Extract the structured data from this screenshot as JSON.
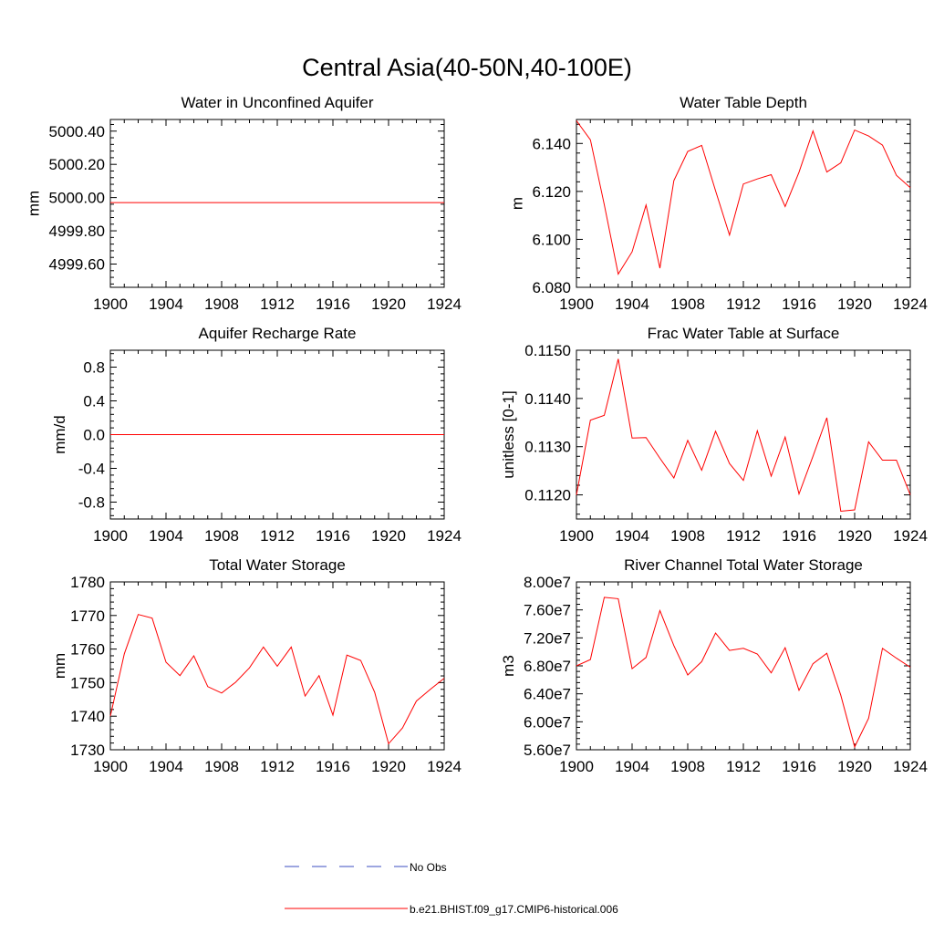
{
  "figure": {
    "title": "Central Asia(40-50N,40-100E)",
    "legend": {
      "entries": [
        {
          "label": "No Obs",
          "color": "#3b4cc0",
          "style": "dashed"
        },
        {
          "label": "b.e21.BHIST.f09_g17.CMIP6-historical.006",
          "color": "#ff0000",
          "style": "solid"
        }
      ]
    }
  },
  "chart_data": [
    {
      "type": "line",
      "title": "Water in Unconfined Aquifer",
      "ylabel": "mm",
      "xlim": [
        1900,
        1924
      ],
      "ylim": [
        4999.46,
        5000.47
      ],
      "xticks": [
        1900,
        1904,
        1908,
        1912,
        1916,
        1920,
        1924
      ],
      "xtick_labels": [
        "1900",
        "1904",
        "1908",
        "1912",
        "1916",
        "1920",
        "1924"
      ],
      "yticks": [
        4999.6,
        4999.8,
        5000.0,
        5000.2,
        5000.4
      ],
      "ytick_labels": [
        "4999.60",
        "4999.80",
        "5000.00",
        "5000.20",
        "5000.40"
      ],
      "series": [
        {
          "name": "b.e21.BHIST.f09_g17.CMIP6-historical.006",
          "color": "#ff0000",
          "x": [
            1900,
            1924
          ],
          "values": [
            4999.97,
            4999.97
          ]
        }
      ]
    },
    {
      "type": "line",
      "title": "Water Table Depth",
      "ylabel": "m",
      "xlim": [
        1900,
        1924
      ],
      "ylim": [
        6.08,
        6.15
      ],
      "xticks": [
        1900,
        1904,
        1908,
        1912,
        1916,
        1920,
        1924
      ],
      "xtick_labels": [
        "1900",
        "1904",
        "1908",
        "1912",
        "1916",
        "1920",
        "1924"
      ],
      "yticks": [
        6.08,
        6.1,
        6.12,
        6.14
      ],
      "ytick_labels": [
        "6.080",
        "6.100",
        "6.120",
        "6.140"
      ],
      "series": [
        {
          "name": "b.e21.BHIST.f09_g17.CMIP6-historical.006",
          "color": "#ff0000",
          "x": [
            1900,
            1901,
            1902,
            1903,
            1904,
            1905,
            1906,
            1907,
            1908,
            1909,
            1910,
            1911,
            1912,
            1913,
            1914,
            1915,
            1916,
            1917,
            1918,
            1919,
            1920,
            1921,
            1922,
            1923,
            1924
          ],
          "values": [
            6.1495,
            6.1415,
            6.1145,
            6.0855,
            6.0948,
            6.1143,
            6.088,
            6.1245,
            6.1367,
            6.1392,
            6.1203,
            6.1018,
            6.1231,
            6.1252,
            6.127,
            6.1137,
            6.128,
            6.1452,
            6.1281,
            6.1319,
            6.1456,
            6.1431,
            6.1393,
            6.1267,
            6.1216
          ]
        }
      ]
    },
    {
      "type": "line",
      "title": "Aquifer Recharge Rate",
      "ylabel": "mm/d",
      "xlim": [
        1900,
        1924
      ],
      "ylim": [
        -1.0,
        1.0
      ],
      "xticks": [
        1900,
        1904,
        1908,
        1912,
        1916,
        1920,
        1924
      ],
      "xtick_labels": [
        "1900",
        "1904",
        "1908",
        "1912",
        "1916",
        "1920",
        "1924"
      ],
      "yticks": [
        -0.8,
        -0.4,
        0.0,
        0.4,
        0.8
      ],
      "ytick_labels": [
        "-0.8",
        "-0.4",
        "0.0",
        "0.4",
        "0.8"
      ],
      "series": [
        {
          "name": "b.e21.BHIST.f09_g17.CMIP6-historical.006",
          "color": "#ff0000",
          "x": [
            1900,
            1924
          ],
          "values": [
            0.0,
            0.0
          ]
        }
      ]
    },
    {
      "type": "line",
      "title": "Frac Water Table at Surface",
      "ylabel": "unitless [0-1]",
      "xlim": [
        1900,
        1924
      ],
      "ylim": [
        0.1115,
        0.115
      ],
      "xticks": [
        1900,
        1904,
        1908,
        1912,
        1916,
        1920,
        1924
      ],
      "xtick_labels": [
        "1900",
        "1904",
        "1908",
        "1912",
        "1916",
        "1920",
        "1924"
      ],
      "yticks": [
        0.112,
        0.113,
        0.114,
        0.115
      ],
      "ytick_labels": [
        "0.1120",
        "0.1130",
        "0.1140",
        "0.1150"
      ],
      "series": [
        {
          "name": "b.e21.BHIST.f09_g17.CMIP6-historical.006",
          "color": "#ff0000",
          "x": [
            1900,
            1901,
            1902,
            1903,
            1904,
            1905,
            1906,
            1907,
            1908,
            1909,
            1910,
            1911,
            1912,
            1913,
            1914,
            1915,
            1916,
            1917,
            1918,
            1919,
            1920,
            1921,
            1922,
            1923,
            1924
          ],
          "values": [
            0.112,
            0.11355,
            0.11365,
            0.11482,
            0.11318,
            0.11319,
            0.11276,
            0.11235,
            0.11313,
            0.11251,
            0.11332,
            0.11265,
            0.1123,
            0.11333,
            0.11239,
            0.1132,
            0.11202,
            0.1128,
            0.1136,
            0.11166,
            0.11169,
            0.1131,
            0.11272,
            0.11272,
            0.112
          ]
        }
      ]
    },
    {
      "type": "line",
      "title": "Total Water Storage",
      "ylabel": "mm",
      "xlim": [
        1900,
        1924
      ],
      "ylim": [
        1730,
        1780
      ],
      "xticks": [
        1900,
        1904,
        1908,
        1912,
        1916,
        1920,
        1924
      ],
      "xtick_labels": [
        "1900",
        "1904",
        "1908",
        "1912",
        "1916",
        "1920",
        "1924"
      ],
      "yticks": [
        1730,
        1740,
        1750,
        1760,
        1770,
        1780
      ],
      "ytick_labels": [
        "1730",
        "1740",
        "1750",
        "1760",
        "1770",
        "1780"
      ],
      "series": [
        {
          "name": "b.e21.BHIST.f09_g17.CMIP6-historical.006",
          "color": "#ff0000",
          "x": [
            1900,
            1901,
            1902,
            1903,
            1904,
            1905,
            1906,
            1907,
            1908,
            1909,
            1910,
            1911,
            1912,
            1913,
            1914,
            1915,
            1916,
            1917,
            1918,
            1919,
            1920,
            1921,
            1922,
            1923,
            1924
          ],
          "values": [
            1740.0,
            1758.6,
            1770.3,
            1769.2,
            1756.1,
            1752.1,
            1758.0,
            1748.8,
            1746.9,
            1750.1,
            1754.4,
            1760.6,
            1754.9,
            1760.6,
            1746.0,
            1752.1,
            1740.3,
            1758.2,
            1756.6,
            1747.1,
            1731.8,
            1736.5,
            1744.5,
            1748.0,
            1751.3
          ]
        }
      ]
    },
    {
      "type": "line",
      "title": "River Channel Total Water Storage",
      "ylabel": "m3",
      "xlim": [
        1900,
        1924
      ],
      "ylim": [
        56000000.0,
        80000000.0
      ],
      "xticks": [
        1900,
        1904,
        1908,
        1912,
        1916,
        1920,
        1924
      ],
      "xtick_labels": [
        "1900",
        "1904",
        "1908",
        "1912",
        "1916",
        "1920",
        "1924"
      ],
      "yticks": [
        56000000.0,
        60000000.0,
        64000000.0,
        68000000.0,
        72000000.0,
        76000000.0,
        80000000.0
      ],
      "ytick_labels": [
        "5.60e7",
        "6.00e7",
        "6.40e7",
        "6.80e7",
        "7.20e7",
        "7.60e7",
        "8.00e7"
      ],
      "series": [
        {
          "name": "b.e21.BHIST.f09_g17.CMIP6-historical.006",
          "color": "#ff0000",
          "x": [
            1900,
            1901,
            1902,
            1903,
            1904,
            1905,
            1906,
            1907,
            1908,
            1909,
            1910,
            1911,
            1912,
            1913,
            1914,
            1915,
            1916,
            1917,
            1918,
            1919,
            1920,
            1921,
            1922,
            1923,
            1924
          ],
          "values": [
            68000000.0,
            68900000.0,
            77800000.0,
            77600000.0,
            67600000.0,
            69200000.0,
            75900000.0,
            70900000.0,
            66700000.0,
            68600000.0,
            72700000.0,
            70200000.0,
            70500000.0,
            69700000.0,
            67000000.0,
            70600000.0,
            64500000.0,
            68300000.0,
            69800000.0,
            63800000.0,
            56400000.0,
            60500000.0,
            70500000.0,
            69100000.0,
            67800000.0
          ]
        }
      ]
    }
  ]
}
